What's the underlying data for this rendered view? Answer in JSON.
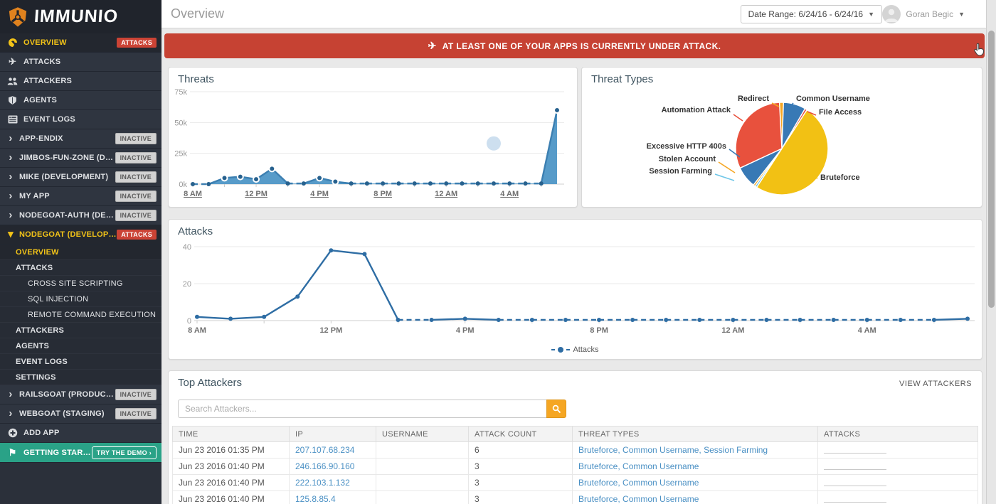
{
  "brand": {
    "name": "IMMUNIO"
  },
  "header": {
    "title": "Overview",
    "date_range_label": "Date Range: 6/24/16 - 6/24/16",
    "user_name": "Goran Begic"
  },
  "alert": {
    "text": "AT LEAST ONE OF YOUR APPS IS CURRENTLY UNDER ATTACK."
  },
  "sidebar": {
    "items": [
      {
        "label": "OVERVIEW",
        "icon": "gauge-icon",
        "badge": "ATTACKS",
        "kind": "top",
        "active": true,
        "name": "sidebar-item-overview"
      },
      {
        "label": "ATTACKS",
        "icon": "plane-icon",
        "kind": "top",
        "name": "sidebar-item-attacks"
      },
      {
        "label": "ATTACKERS",
        "icon": "users-icon",
        "kind": "top",
        "name": "sidebar-item-attackers"
      },
      {
        "label": "AGENTS",
        "icon": "shield-icon",
        "kind": "top",
        "name": "sidebar-item-agents"
      },
      {
        "label": "EVENT LOGS",
        "icon": "logs-icon",
        "kind": "top",
        "name": "sidebar-item-event-logs"
      },
      {
        "label": "APP-ENDIX",
        "icon": "chevron-right-icon",
        "badge": "INACTIVE",
        "kind": "app",
        "name": "sidebar-app-app-endix"
      },
      {
        "label": "JIMBOS-FUN-ZONE (DEVELO...",
        "icon": "chevron-right-icon",
        "badge": "INACTIVE",
        "kind": "app",
        "name": "sidebar-app-jimbos-fun-zone"
      },
      {
        "label": "MIKE (DEVELOPMENT)",
        "icon": "chevron-right-icon",
        "badge": "INACTIVE",
        "kind": "app",
        "name": "sidebar-app-mike"
      },
      {
        "label": "MY APP",
        "icon": "chevron-right-icon",
        "badge": "INACTIVE",
        "kind": "app",
        "name": "sidebar-app-my-app"
      },
      {
        "label": "NODEGOAT-AUTH (DEVELOPM...",
        "icon": "chevron-right-icon",
        "badge": "INACTIVE",
        "kind": "app",
        "name": "sidebar-app-nodegoat-auth"
      },
      {
        "label": "NODEGOAT (DEVELOPMENT)",
        "icon": "chevron-down-icon",
        "badge": "ATTACKS",
        "kind": "app",
        "active": true,
        "name": "sidebar-app-nodegoat"
      },
      {
        "label": "OVERVIEW",
        "kind": "sub",
        "active": true,
        "name": "sidebar-sub-overview"
      },
      {
        "label": "ATTACKS",
        "kind": "sub",
        "name": "sidebar-sub-attacks"
      },
      {
        "label": "CROSS SITE SCRIPTING",
        "kind": "subsub",
        "name": "sidebar-sub-cross-site-scripting"
      },
      {
        "label": "SQL INJECTION",
        "kind": "subsub",
        "name": "sidebar-sub-sql-injection"
      },
      {
        "label": "REMOTE COMMAND EXECUTION",
        "kind": "subsub",
        "name": "sidebar-sub-remote-command-execution"
      },
      {
        "label": "ATTACKERS",
        "kind": "sub",
        "name": "sidebar-sub-attackers"
      },
      {
        "label": "AGENTS",
        "kind": "sub",
        "name": "sidebar-sub-agents"
      },
      {
        "label": "EVENT LOGS",
        "kind": "sub",
        "name": "sidebar-sub-event-logs"
      },
      {
        "label": "SETTINGS",
        "kind": "sub",
        "name": "sidebar-sub-settings"
      },
      {
        "label": "RAILSGOAT (PRODUCTION)",
        "icon": "chevron-right-icon",
        "badge": "INACTIVE",
        "kind": "app",
        "name": "sidebar-app-railsgoat"
      },
      {
        "label": "WEBGOAT (STAGING)",
        "icon": "chevron-right-icon",
        "badge": "INACTIVE",
        "kind": "app",
        "name": "sidebar-app-webgoat"
      },
      {
        "label": "ADD APP",
        "icon": "plus-icon",
        "kind": "top",
        "name": "sidebar-item-add-app"
      },
      {
        "label": "GETTING STARTED",
        "icon": "flag-icon",
        "kind": "cta",
        "button": "TRY THE DEMO ›",
        "name": "sidebar-item-getting-started"
      }
    ]
  },
  "chart_data": [
    {
      "id": "threats",
      "type": "area",
      "title": "Threats",
      "x": [
        "8 AM",
        "9 AM",
        "10 AM",
        "11 AM",
        "12 PM",
        "1 PM",
        "2 PM",
        "3 PM",
        "4 PM",
        "5 PM",
        "6 PM",
        "7 PM",
        "8 PM",
        "9 PM",
        "10 PM",
        "11 PM",
        "12 AM",
        "1 AM",
        "2 AM",
        "3 AM",
        "4 AM",
        "5 AM",
        "6 AM",
        "7 AM"
      ],
      "values_thousands": [
        0,
        0,
        5,
        6,
        4,
        12.5,
        0.5,
        0.5,
        5,
        2,
        0.5,
        0.5,
        0.5,
        0.5,
        0.5,
        0.5,
        0.5,
        0.5,
        0.5,
        0.5,
        0.5,
        0.5,
        0.5,
        60
      ],
      "ylim_thousands": [
        0,
        75
      ],
      "ytick_labels": [
        "0k",
        "25k",
        "50k",
        "75k"
      ],
      "x_tick_labels": [
        "8 AM",
        "12 PM",
        "4 PM",
        "8 PM",
        "12 AM",
        "4 AM"
      ],
      "x_tick_indices": [
        0,
        4,
        8,
        12,
        16,
        20
      ],
      "faded_point": {
        "x_index": 19,
        "value_thousands": 33
      },
      "grid": true,
      "legend_position": "none"
    },
    {
      "id": "threat_types",
      "type": "pie",
      "title": "Threat Types",
      "labels": [
        "Redirect",
        "Common Username",
        "File Access",
        "Bruteforce",
        "Session Farming",
        "Stolen Account",
        "Excessive HTTP 400s",
        "Automation Attack"
      ],
      "values_percent": [
        1.4,
        7.8,
        0.8,
        50.0,
        0.7,
        0.7,
        7.5,
        31.1
      ],
      "colors": [
        "#f5a623",
        "#3879b5",
        "#e8513d",
        "#f2c114",
        "#6ec6e8",
        "#f5a623",
        "#3879b5",
        "#e8513d"
      ],
      "start_angle_deg": -3
    },
    {
      "id": "attacks",
      "type": "line",
      "title": "Attacks",
      "x": [
        "8 AM",
        "9 AM",
        "10 AM",
        "11 AM",
        "12 PM",
        "1 PM",
        "2 PM",
        "3 PM",
        "4 PM",
        "5 PM",
        "6 PM",
        "7 PM",
        "8 PM",
        "9 PM",
        "10 PM",
        "11 PM",
        "12 AM",
        "1 AM",
        "2 AM",
        "3 AM",
        "4 AM",
        "5 AM",
        "6 AM",
        "7 AM"
      ],
      "values": [
        2,
        1,
        2,
        13,
        38,
        36,
        0.4,
        0.4,
        1,
        0.4,
        0.4,
        0.4,
        0.4,
        0.4,
        0.4,
        0.4,
        0.4,
        0.4,
        0.4,
        0.4,
        0.4,
        0.4,
        0.4,
        1
      ],
      "ylim": [
        0,
        40
      ],
      "ytick_labels": [
        "0",
        "20",
        "40"
      ],
      "x_tick_labels": [
        "8 AM",
        "12 PM",
        "4 PM",
        "8 PM",
        "12 AM",
        "4 AM"
      ],
      "x_tick_indices": [
        0,
        4,
        8,
        12,
        16,
        20
      ],
      "legend_label": "Attacks",
      "legend_position": "bottom-center",
      "grid": true
    }
  ],
  "top_attackers": {
    "title": "Top Attackers",
    "view_link": "VIEW ATTACKERS",
    "search_placeholder": "Search Attackers...",
    "columns": [
      "TIME",
      "IP",
      "USERNAME",
      "ATTACK COUNT",
      "THREAT TYPES",
      "ATTACKS"
    ],
    "rows": [
      {
        "time": "Jun 23 2016 01:35 PM",
        "ip": "207.107.68.234",
        "username": "",
        "attack_count": "6",
        "threat_types": "Bruteforce, Common Username, Session Farming"
      },
      {
        "time": "Jun 23 2016 01:40 PM",
        "ip": "246.166.90.160",
        "username": "",
        "attack_count": "3",
        "threat_types": "Bruteforce, Common Username"
      },
      {
        "time": "Jun 23 2016 01:40 PM",
        "ip": "222.103.1.132",
        "username": "",
        "attack_count": "3",
        "threat_types": "Bruteforce, Common Username"
      },
      {
        "time": "Jun 23 2016 01:40 PM",
        "ip": "125.8.85.4",
        "username": "",
        "attack_count": "3",
        "threat_types": "Bruteforce, Common Username"
      }
    ]
  }
}
